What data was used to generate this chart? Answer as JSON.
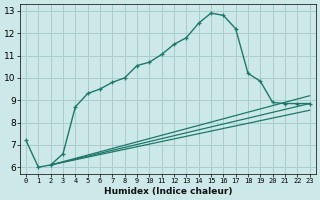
{
  "xlabel": "Humidex (Indice chaleur)",
  "background_color": "#cce8e8",
  "grid_color": "#aacccc",
  "line_color": "#1a7a6a",
  "xlim": [
    -0.5,
    23.5
  ],
  "ylim": [
    5.7,
    13.3
  ],
  "xticks": [
    0,
    1,
    2,
    3,
    4,
    5,
    6,
    7,
    8,
    9,
    10,
    11,
    12,
    13,
    14,
    15,
    16,
    17,
    18,
    19,
    20,
    21,
    22,
    23
  ],
  "yticks": [
    6,
    7,
    8,
    9,
    10,
    11,
    12,
    13
  ],
  "curve": {
    "x": [
      0,
      1,
      2,
      3,
      4,
      5,
      6,
      7,
      8,
      9,
      10,
      11,
      12,
      13,
      14,
      15,
      16,
      17,
      18,
      19,
      20,
      21,
      22,
      23
    ],
    "y": [
      7.2,
      6.0,
      6.1,
      6.6,
      8.7,
      9.3,
      9.5,
      9.8,
      10.0,
      10.55,
      10.7,
      11.05,
      11.5,
      11.8,
      12.45,
      12.9,
      12.8,
      12.2,
      10.2,
      9.85,
      8.9,
      8.85,
      8.85,
      8.85
    ]
  },
  "lines": [
    {
      "x": [
        2,
        23
      ],
      "y": [
        6.1,
        8.55
      ]
    },
    {
      "x": [
        2,
        23
      ],
      "y": [
        6.1,
        8.85
      ]
    },
    {
      "x": [
        2,
        23
      ],
      "y": [
        6.1,
        9.2
      ]
    }
  ]
}
